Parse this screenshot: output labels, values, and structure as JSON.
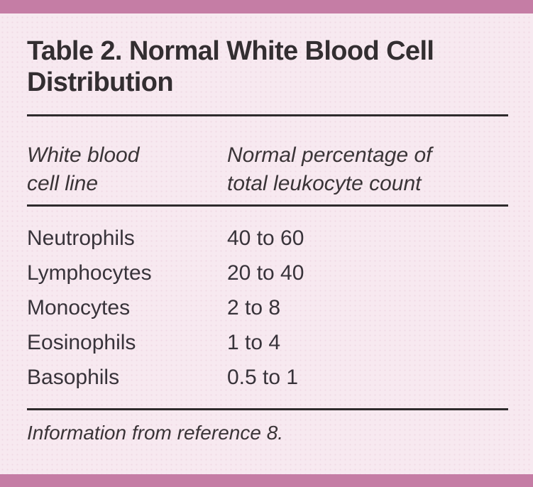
{
  "theme": {
    "accent_bar_color": "#c57da5",
    "background_color": "#f7e9f0",
    "title_color": "#332e31",
    "text_color": "#3a3437",
    "rule_color": "#2e2a2c"
  },
  "table": {
    "title": "Table 2. Normal White Blood Cell\nDistribution",
    "columns": [
      {
        "label": "White blood\ncell line"
      },
      {
        "label": "Normal percentage of\ntotal leukocyte count"
      }
    ],
    "rows": [
      {
        "cell_line": "Neutrophils",
        "percentage": "40 to 60"
      },
      {
        "cell_line": "Lymphocytes",
        "percentage": "20 to 40"
      },
      {
        "cell_line": "Monocytes",
        "percentage": "2 to 8"
      },
      {
        "cell_line": "Eosinophils",
        "percentage": "1 to 4"
      },
      {
        "cell_line": "Basophils",
        "percentage": "0.5 to 1"
      }
    ],
    "footnote": "Information from reference 8."
  }
}
